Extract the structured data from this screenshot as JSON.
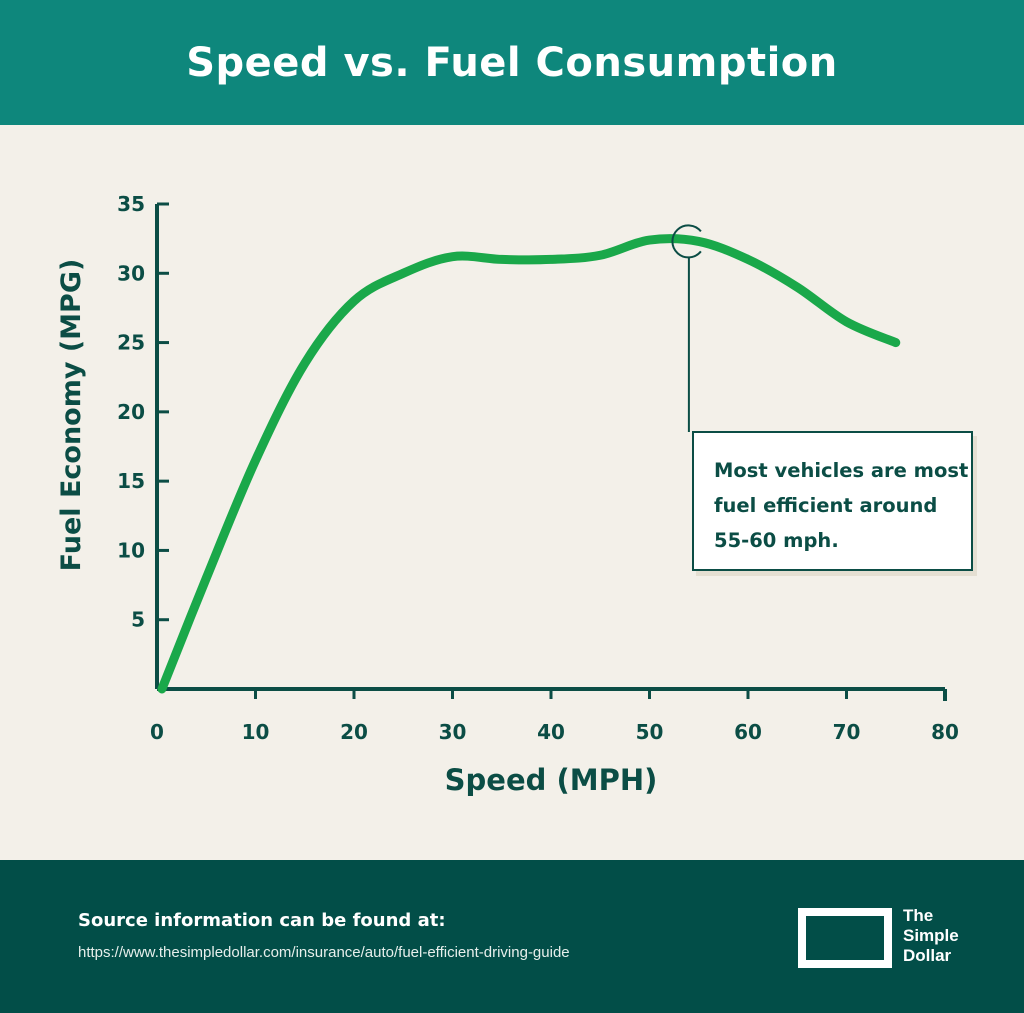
{
  "header": {
    "title": "Speed vs. Fuel Consumption"
  },
  "chart_data": {
    "type": "line",
    "title": "Speed vs. Fuel Consumption",
    "xlabel": "Speed (MPH)",
    "ylabel": "Fuel Economy (MPG)",
    "xlim": [
      0,
      80
    ],
    "ylim": [
      0,
      35
    ],
    "xticks": [
      "0",
      "10",
      "20",
      "30",
      "40",
      "50",
      "60",
      "70",
      "80"
    ],
    "yticks": [
      "5",
      "10",
      "15",
      "20",
      "25",
      "30",
      "35"
    ],
    "grid": false,
    "series": [
      {
        "name": "Fuel Economy",
        "color": "#1aa84a",
        "x": [
          0.5,
          5,
          10,
          15,
          20,
          25,
          30,
          35,
          40,
          45,
          50,
          55,
          60,
          65,
          70,
          75
        ],
        "y": [
          0,
          8,
          16.5,
          23.5,
          28,
          30,
          31.2,
          31,
          31,
          31.3,
          32.4,
          32.3,
          31,
          29,
          26.5,
          25
        ]
      }
    ],
    "annotation": {
      "x": 54,
      "y": 32.3,
      "text": "Most vehicles are most fuel efficient around 55-60 mph."
    }
  },
  "footer": {
    "source_title": "Source information can be found at:",
    "source_url": "https://www.thesimpledollar.com/insurance/auto/fuel-efficient-driving-guide",
    "logo": "The Simple Dollar",
    "logo_lines": [
      "The",
      "Simple",
      "Dollar"
    ]
  },
  "colors": {
    "header": "#0e877c",
    "footer": "#024e48",
    "text": "#0b4d45",
    "line": "#1aa84a",
    "background": "#f3f0e9"
  }
}
